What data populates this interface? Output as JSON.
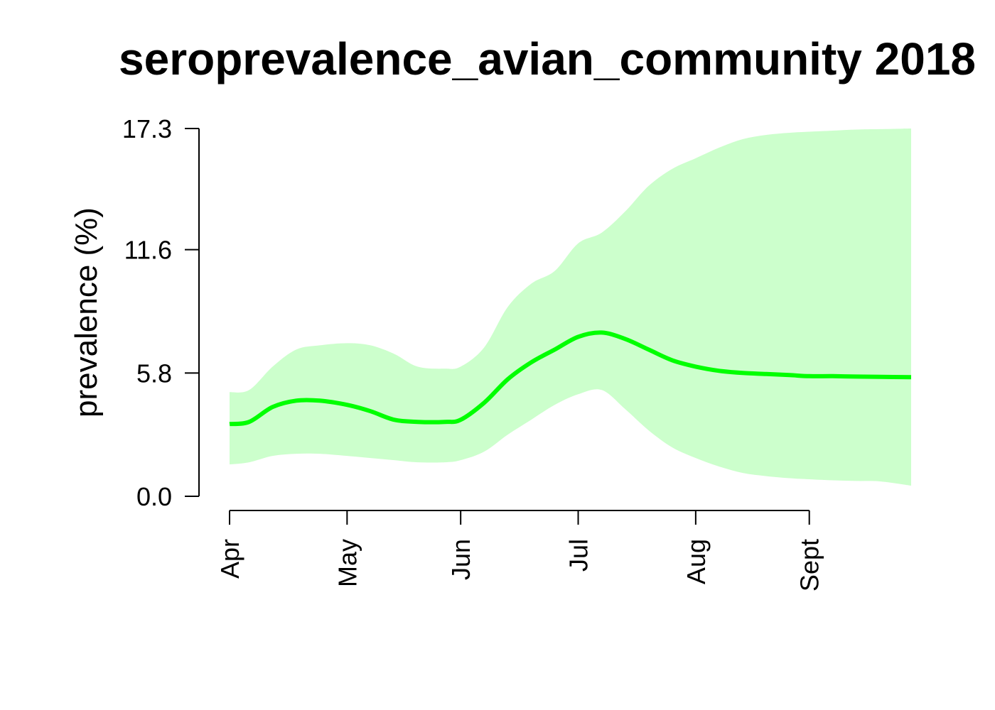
{
  "chart_data": {
    "type": "line",
    "title": "seroprevalence_avian_community 2018",
    "xlabel": "",
    "ylabel": "prevalence (%)",
    "y_ticks": [
      "0.0",
      "5.8",
      "11.6",
      "17.3"
    ],
    "y_tick_values": [
      0.0,
      5.8,
      11.6,
      17.3
    ],
    "ylim": [
      0.0,
      17.3
    ],
    "x_ticks": [
      {
        "label": "Apr",
        "date": "2018-04-01"
      },
      {
        "label": "May",
        "date": "2018-05-01"
      },
      {
        "label": "Jun",
        "date": "2018-05-30"
      },
      {
        "label": "Jul",
        "date": "2018-06-29"
      },
      {
        "label": "Aug",
        "date": "2018-07-29"
      },
      {
        "label": "Sept",
        "date": "2018-08-27"
      }
    ],
    "xlim": [
      "2018-04-01",
      "2018-09-22"
    ],
    "grid": false,
    "series": [
      {
        "color": "#00ff00",
        "band_color": "#ccffcc",
        "x": [
          "2018-04-01",
          "2018-04-06",
          "2018-04-12",
          "2018-04-18",
          "2018-04-24",
          "2018-05-01",
          "2018-05-07",
          "2018-05-13",
          "2018-05-19",
          "2018-05-26",
          "2018-05-30",
          "2018-06-05",
          "2018-06-11",
          "2018-06-17",
          "2018-06-23",
          "2018-06-29",
          "2018-07-05",
          "2018-07-11",
          "2018-07-17",
          "2018-07-23",
          "2018-07-29",
          "2018-08-04",
          "2018-08-10",
          "2018-08-16",
          "2018-08-22",
          "2018-08-27",
          "2018-09-02",
          "2018-09-08",
          "2018-09-14",
          "2018-09-22"
        ],
        "values": [
          3.4,
          3.5,
          4.2,
          4.5,
          4.5,
          4.3,
          4.0,
          3.6,
          3.5,
          3.5,
          3.6,
          4.4,
          5.5,
          6.3,
          6.9,
          7.5,
          7.7,
          7.4,
          6.9,
          6.4,
          6.1,
          5.9,
          5.8,
          5.75,
          5.7,
          5.65,
          5.65,
          5.63,
          5.62,
          5.6
        ],
        "lower": [
          1.5,
          1.6,
          1.9,
          2.0,
          2.0,
          1.9,
          1.8,
          1.7,
          1.6,
          1.6,
          1.7,
          2.1,
          2.9,
          3.6,
          4.3,
          4.8,
          5.0,
          4.1,
          3.1,
          2.3,
          1.8,
          1.4,
          1.1,
          0.95,
          0.85,
          0.8,
          0.75,
          0.72,
          0.7,
          0.5
        ],
        "upper": [
          4.9,
          5.0,
          6.1,
          6.9,
          7.1,
          7.2,
          7.1,
          6.7,
          6.1,
          6.0,
          6.1,
          7.0,
          8.9,
          10.0,
          10.6,
          11.9,
          12.4,
          13.4,
          14.6,
          15.4,
          15.9,
          16.4,
          16.8,
          17.0,
          17.1,
          17.15,
          17.2,
          17.25,
          17.27,
          17.3
        ]
      }
    ]
  }
}
